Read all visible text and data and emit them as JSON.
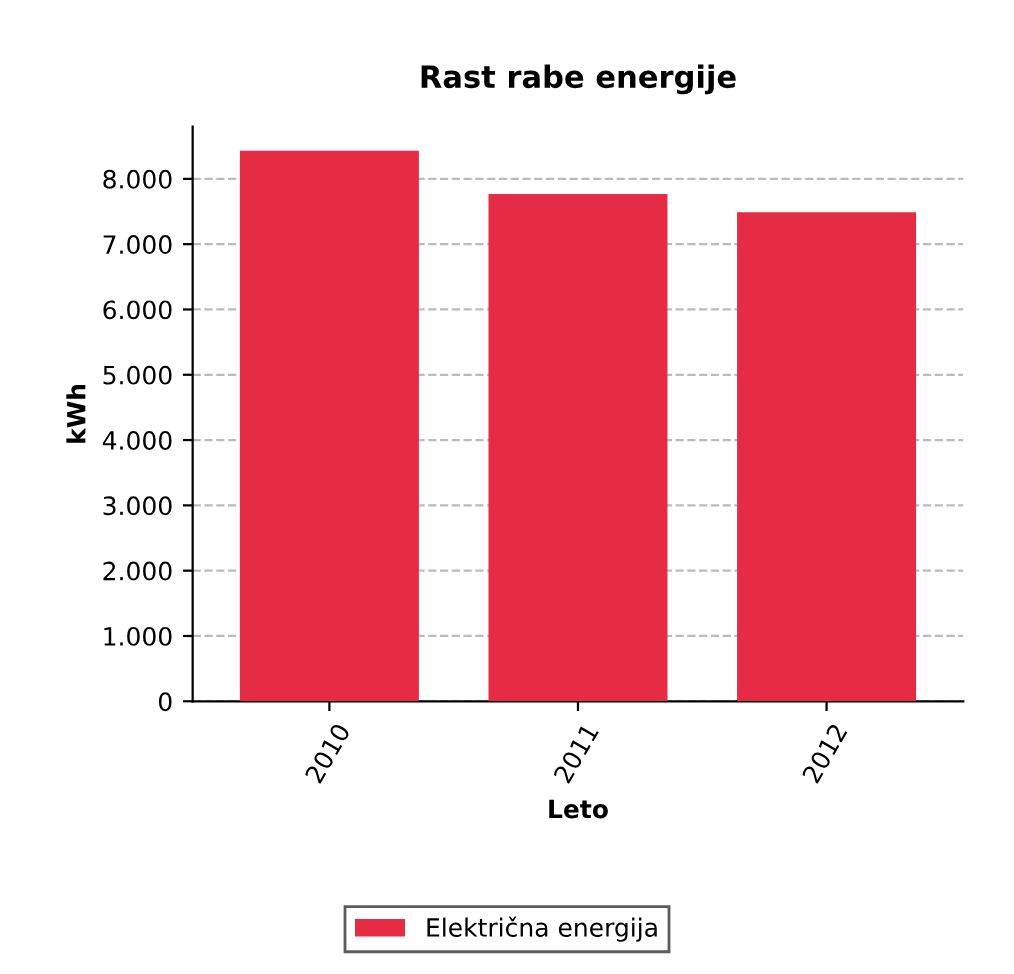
{
  "chart_data": {
    "type": "bar",
    "title": "Rast rabe energije",
    "xlabel": "Leto",
    "ylabel": "kWh",
    "categories": [
      "2010",
      "2011",
      "2012"
    ],
    "series": [
      {
        "name": "Električna energija",
        "color": "#e62b45",
        "values": [
          8430,
          7770,
          7490
        ]
      }
    ],
    "ylim": [
      0,
      8800
    ],
    "yticks": [
      {
        "value": 0,
        "label": "0"
      },
      {
        "value": 1000,
        "label": "1.000"
      },
      {
        "value": 2000,
        "label": "2.000"
      },
      {
        "value": 3000,
        "label": "3.000"
      },
      {
        "value": 4000,
        "label": "4.000"
      },
      {
        "value": 5000,
        "label": "5.000"
      },
      {
        "value": 6000,
        "label": "6.000"
      },
      {
        "value": 7000,
        "label": "7.000"
      },
      {
        "value": 8000,
        "label": "8.000"
      }
    ],
    "grid": "y",
    "legend": "bottom"
  }
}
